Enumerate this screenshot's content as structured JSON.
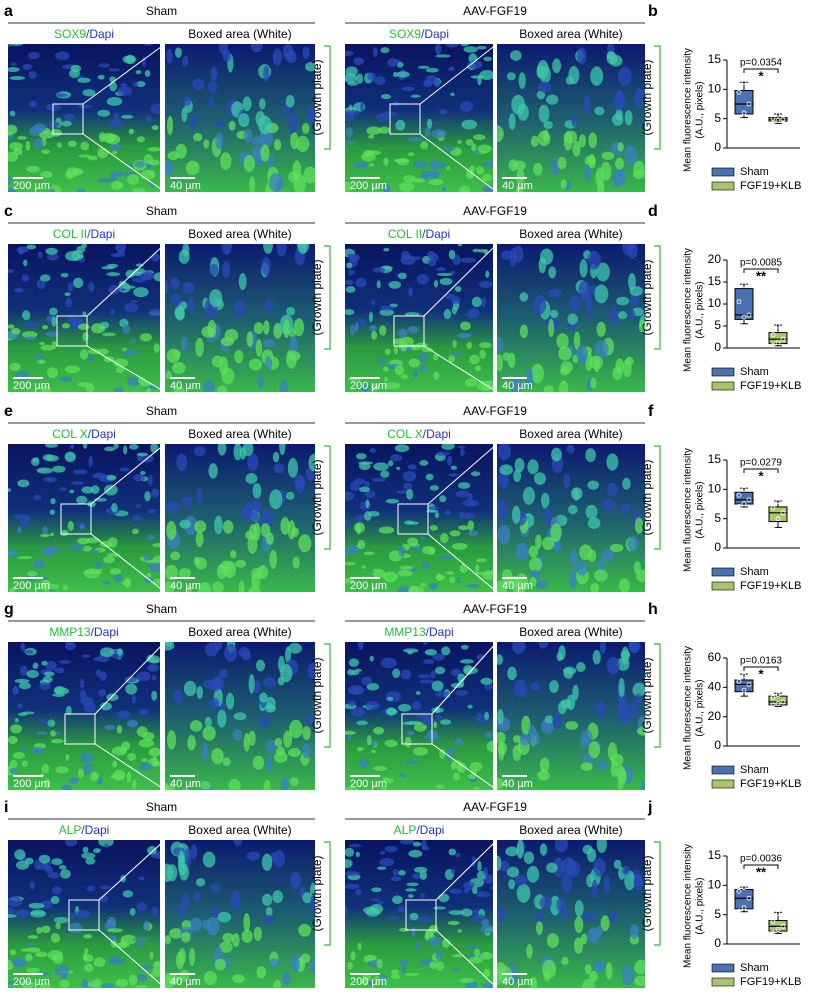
{
  "panels": [
    {
      "letter": "a",
      "left_group": "Sham",
      "right_group": "AAV-FGF19",
      "stain": "SOX9",
      "counterstain": "/Dapi",
      "zoom_title": "Boxed area (White)",
      "scale_overview": "200 µm",
      "scale_zoom": "40 µm",
      "region": "(Growth plate)"
    },
    {
      "letter": "c",
      "left_group": "Sham",
      "right_group": "AAV-FGF19",
      "stain": "COL II",
      "counterstain": "/Dapi",
      "zoom_title": "Boxed area (White)",
      "scale_overview": "200 µm",
      "scale_zoom": "40 µm",
      "region": "(Growth plate)"
    },
    {
      "letter": "e",
      "left_group": "Sham",
      "right_group": "AAV-FGF19",
      "stain": "COL X",
      "counterstain": "/Dapi",
      "zoom_title": "Boxed area (White)",
      "scale_overview": "200 µm",
      "scale_zoom": "40 µm",
      "region": "(Growth plate)"
    },
    {
      "letter": "g",
      "left_group": "Sham",
      "right_group": "AAV-FGF19",
      "stain": "MMP13",
      "counterstain": "/Dapi",
      "zoom_title": "Boxed area (White)",
      "scale_overview": "200 µm",
      "scale_zoom": "40 µm",
      "region": "(Growth plate)"
    },
    {
      "letter": "i",
      "left_group": "Sham",
      "right_group": "AAV-FGF19",
      "stain": "ALP",
      "counterstain": "/Dapi",
      "zoom_title": "Boxed area (White)",
      "scale_overview": "200 µm",
      "scale_zoom": "40 µm",
      "region": "(Growth plate)"
    }
  ],
  "chart_data": [
    {
      "type": "box",
      "letter": "b",
      "ylabel": [
        "Mean fluorescence intensity",
        "(A.U., pixels)"
      ],
      "ylim": [
        0,
        15
      ],
      "yticks": [
        0,
        5,
        10,
        15
      ],
      "annotation": "p=0.0354",
      "significance": "*",
      "series": [
        {
          "name": "Sham",
          "color": "#4a72b0",
          "min": 5.2,
          "q1": 5.8,
          "median": 7.5,
          "q3": 9.8,
          "max": 11.2,
          "points": [
            5.2,
            6.0,
            7.5,
            9.5,
            11.2
          ]
        },
        {
          "name": "FGF19+KLB",
          "color": "#a9c46c",
          "min": 4.2,
          "q1": 4.6,
          "median": 4.9,
          "q3": 5.2,
          "max": 5.8,
          "points": [
            4.3,
            4.7,
            4.9,
            5.1,
            5.6
          ]
        }
      ]
    },
    {
      "type": "box",
      "letter": "d",
      "ylabel": [
        "Mean fluorescence intensity",
        "(A.U., pixels)"
      ],
      "ylim": [
        0,
        20
      ],
      "yticks": [
        0,
        5,
        10,
        15,
        20
      ],
      "annotation": "p=0.0085",
      "significance": "**",
      "series": [
        {
          "name": "Sham",
          "color": "#4a72b0",
          "min": 5.5,
          "q1": 6.5,
          "median": 7.5,
          "q3": 13.5,
          "max": 14.5,
          "points": [
            5.6,
            7.0,
            7.5,
            10.5,
            14.3
          ]
        },
        {
          "name": "FGF19+KLB",
          "color": "#a9c46c",
          "min": 0.5,
          "q1": 1.0,
          "median": 2.0,
          "q3": 3.5,
          "max": 5.2,
          "points": [
            0.6,
            1.2,
            2.0,
            3.0,
            5.0
          ]
        }
      ]
    },
    {
      "type": "box",
      "letter": "f",
      "ylabel": [
        "Mean fluorescence intensity",
        "(A.U., pixels)"
      ],
      "ylim": [
        0,
        15
      ],
      "yticks": [
        0,
        5,
        10,
        15
      ],
      "annotation": "p=0.0279",
      "significance": "*",
      "series": [
        {
          "name": "Sham",
          "color": "#4a72b0",
          "min": 7.0,
          "q1": 7.5,
          "median": 8.2,
          "q3": 9.5,
          "max": 10.2,
          "points": [
            7.1,
            7.6,
            8.2,
            9.0,
            10.0
          ]
        },
        {
          "name": "FGF19+KLB",
          "color": "#a9c46c",
          "min": 3.5,
          "q1": 4.5,
          "median": 6.0,
          "q3": 7.0,
          "max": 8.0,
          "points": [
            3.6,
            5.0,
            6.0,
            6.8,
            7.9
          ]
        }
      ]
    },
    {
      "type": "box",
      "letter": "h",
      "ylabel": [
        "Mean fluorescence intensity",
        "(A.U., pixels)"
      ],
      "ylim": [
        0,
        60
      ],
      "yticks": [
        0,
        20,
        40,
        60
      ],
      "annotation": "p=0.0163",
      "significance": "*",
      "series": [
        {
          "name": "Sham",
          "color": "#4a72b0",
          "min": 34,
          "q1": 37,
          "median": 42,
          "q3": 45,
          "max": 49,
          "points": [
            35,
            38,
            42,
            44,
            48
          ]
        },
        {
          "name": "FGF19+KLB",
          "color": "#a9c46c",
          "min": 27,
          "q1": 28,
          "median": 30,
          "q3": 34,
          "max": 36,
          "points": [
            28,
            29,
            30,
            33,
            35
          ]
        }
      ]
    },
    {
      "type": "box",
      "letter": "j",
      "ylabel": [
        "Mean fluorescence intensity",
        "(A.U., pixels)"
      ],
      "ylim": [
        0,
        15
      ],
      "yticks": [
        0,
        5,
        10,
        15
      ],
      "annotation": "p=0.0036",
      "significance": "**",
      "series": [
        {
          "name": "Sham",
          "color": "#4a72b0",
          "min": 5.5,
          "q1": 6.0,
          "median": 7.8,
          "q3": 9.3,
          "max": 9.7,
          "points": [
            5.6,
            6.2,
            7.8,
            9.0,
            9.6
          ]
        },
        {
          "name": "FGF19+KLB",
          "color": "#a9c46c",
          "min": 1.8,
          "q1": 2.2,
          "median": 3.0,
          "q3": 4.0,
          "max": 5.4,
          "points": [
            1.9,
            2.5,
            3.0,
            3.8,
            5.2
          ]
        }
      ]
    }
  ]
}
